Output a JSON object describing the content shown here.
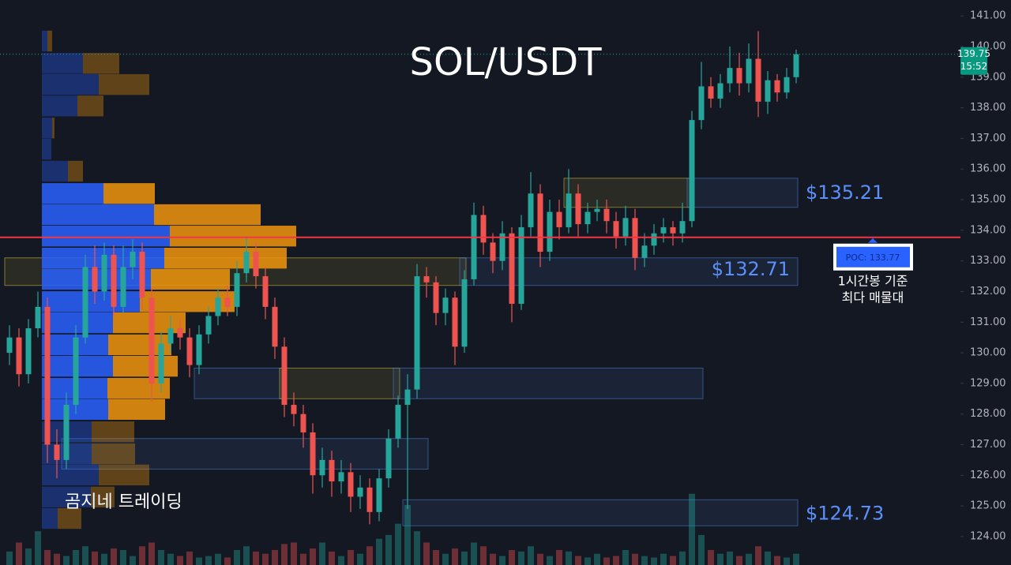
{
  "chart_data": {
    "type": "candlestick",
    "title": "SOL/USDT",
    "annotation": "곰지네 트레이딩",
    "ylim": [
      123.07,
      141.52
    ],
    "yticks": [
      {
        "value": 124,
        "label": "124.00"
      },
      {
        "value": 125,
        "label": "125.00"
      },
      {
        "value": 126,
        "label": "126.00"
      },
      {
        "value": 127,
        "label": "127.00"
      },
      {
        "value": 128,
        "label": "128.00"
      },
      {
        "value": 129,
        "label": "129.00"
      },
      {
        "value": 130,
        "label": "130.00"
      },
      {
        "value": 131,
        "label": "131.00"
      },
      {
        "value": 132,
        "label": "132.00"
      },
      {
        "value": 133,
        "label": "133.00"
      },
      {
        "value": 134,
        "label": "134.00"
      },
      {
        "value": 135,
        "label": "135.00"
      },
      {
        "value": 136,
        "label": "136.00"
      },
      {
        "value": 137,
        "label": "137.00"
      },
      {
        "value": 138,
        "label": "138.00"
      },
      {
        "value": 139,
        "label": "139.00"
      },
      {
        "value": 140,
        "label": "140.00"
      },
      {
        "value": 141,
        "label": "141.00"
      }
    ],
    "up_color": "#26a69a",
    "down_color": "#ef5350",
    "open": [
      130.0,
      130.5,
      129.3,
      130.8,
      131.5,
      127.0,
      126.5,
      128.3,
      130.5,
      132.8,
      132.0,
      133.2,
      131.5,
      132.8,
      133.3,
      131.8,
      129.0,
      130.3,
      130.8,
      130.5,
      129.6,
      130.6,
      131.2,
      131.8,
      131.5,
      132.6,
      133.3,
      132.5,
      131.5,
      130.2,
      128.3,
      128.0,
      127.4,
      126.0,
      126.5,
      125.8,
      126.1,
      125.3,
      125.6,
      124.8,
      125.9,
      127.2,
      128.3,
      128.8,
      132.5,
      132.3,
      131.3,
      131.8,
      130.2,
      132.4,
      134.5,
      133.6,
      133.0,
      133.9,
      131.6,
      134.1,
      135.2,
      133.3,
      134.6,
      134.1,
      135.2,
      134.2,
      134.6,
      134.7,
      134.3,
      133.8,
      134.4,
      133.1,
      133.5,
      133.9,
      134.1,
      133.9,
      134.3,
      137.6,
      138.7,
      138.3,
      138.8,
      139.3,
      138.8,
      139.6,
      138.2,
      138.9,
      138.5,
      139.0
    ],
    "high": [
      130.9,
      130.8,
      131.1,
      132.0,
      131.8,
      127.5,
      128.7,
      130.9,
      133.2,
      133.5,
      133.6,
      133.5,
      133.5,
      133.7,
      133.6,
      132.1,
      130.7,
      131.2,
      131.1,
      130.8,
      130.9,
      131.5,
      132.1,
      132.2,
      133.0,
      133.8,
      133.6,
      132.8,
      131.8,
      130.5,
      128.7,
      128.3,
      127.7,
      126.9,
      126.8,
      126.5,
      126.4,
      126.0,
      125.9,
      126.2,
      127.5,
      128.6,
      129.3,
      132.9,
      132.8,
      132.5,
      132.1,
      132.0,
      132.7,
      134.9,
      134.8,
      133.9,
      134.3,
      134.1,
      134.5,
      135.9,
      135.5,
      135.0,
      135.0,
      136.0,
      135.5,
      134.9,
      135.0,
      135.0,
      134.6,
      134.8,
      134.7,
      133.9,
      134.2,
      134.4,
      134.3,
      134.9,
      137.9,
      139.5,
      139.0,
      139.1,
      140.0,
      139.8,
      140.1,
      140.5,
      139.2,
      139.1,
      139.3,
      139.9
    ],
    "low": [
      129.6,
      128.9,
      129.0,
      130.5,
      126.4,
      125.9,
      126.2,
      128.0,
      130.3,
      131.6,
      131.7,
      131.2,
      131.3,
      132.4,
      131.4,
      128.4,
      128.7,
      130.0,
      130.1,
      129.2,
      129.3,
      130.3,
      130.9,
      131.2,
      131.2,
      132.3,
      132.1,
      131.1,
      129.8,
      127.9,
      127.6,
      126.9,
      125.4,
      125.6,
      125.3,
      125.4,
      124.8,
      124.9,
      124.4,
      124.5,
      125.6,
      126.9,
      124.9,
      128.5,
      131.8,
      130.9,
      130.9,
      129.6,
      130.0,
      132.2,
      133.2,
      132.6,
      132.7,
      131.0,
      131.4,
      133.8,
      132.8,
      133.0,
      133.7,
      133.9,
      133.8,
      133.9,
      134.3,
      133.9,
      133.4,
      133.5,
      132.7,
      132.8,
      133.2,
      133.6,
      133.5,
      133.6,
      134.1,
      137.3,
      138.0,
      138.0,
      138.5,
      138.4,
      138.5,
      137.7,
      137.8,
      138.2,
      138.3,
      138.8
    ],
    "close": [
      130.5,
      129.3,
      130.8,
      131.5,
      127.0,
      126.5,
      128.3,
      130.5,
      132.8,
      132.0,
      133.2,
      131.5,
      132.8,
      133.3,
      131.8,
      129.0,
      130.3,
      130.8,
      130.5,
      129.6,
      130.6,
      131.2,
      131.8,
      131.5,
      132.6,
      133.3,
      132.5,
      131.5,
      130.2,
      128.3,
      128.0,
      127.4,
      126.0,
      126.5,
      125.8,
      126.1,
      125.3,
      125.6,
      124.8,
      125.9,
      127.2,
      128.3,
      128.8,
      132.5,
      132.3,
      131.3,
      131.8,
      130.2,
      132.4,
      134.5,
      133.6,
      133.0,
      133.9,
      131.6,
      134.1,
      135.2,
      133.3,
      134.6,
      134.1,
      135.2,
      134.2,
      134.6,
      134.7,
      134.3,
      133.8,
      134.4,
      133.1,
      133.5,
      133.9,
      134.1,
      133.9,
      134.3,
      137.6,
      138.7,
      138.3,
      138.8,
      139.3,
      138.8,
      139.6,
      138.2,
      138.9,
      138.5,
      139.0,
      139.75
    ],
    "volume": [
      18,
      30,
      22,
      45,
      20,
      15,
      12,
      20,
      25,
      18,
      15,
      22,
      20,
      12,
      25,
      30,
      20,
      15,
      12,
      18,
      10,
      12,
      15,
      10,
      20,
      25,
      18,
      15,
      20,
      28,
      30,
      15,
      22,
      30,
      18,
      12,
      20,
      15,
      25,
      35,
      40,
      55,
      80,
      45,
      30,
      20,
      15,
      22,
      18,
      30,
      25,
      15,
      12,
      20,
      18,
      25,
      15,
      12,
      20,
      18,
      12,
      10,
      15,
      10,
      12,
      20,
      15,
      12,
      10,
      15,
      12,
      18,
      95,
      40,
      20,
      15,
      18,
      12,
      15,
      25,
      18,
      12,
      10,
      15
    ],
    "profile": {
      "prices": [
        140.18,
        139.45,
        138.76,
        138.06,
        137.34,
        136.65,
        135.93,
        135.2,
        134.51,
        133.81,
        133.09,
        132.4,
        131.67,
        130.98,
        130.26,
        129.56,
        128.84,
        128.15,
        127.42,
        126.7,
        126.01,
        125.29,
        124.59
      ],
      "buy": [
        7,
        52,
        72,
        45,
        13,
        12,
        33,
        78,
        142,
        162,
        155,
        138,
        124,
        90,
        84,
        90,
        83,
        84,
        63,
        63,
        72,
        62,
        20
      ],
      "sell": [
        6,
        46,
        64,
        33,
        3,
        0,
        19,
        65,
        135,
        160,
        155,
        100,
        120,
        92,
        80,
        82,
        79,
        72,
        54,
        55,
        64,
        30,
        30
      ],
      "buy_color": "#2962ff",
      "sell_color": "#f0950c",
      "value_area": [
        127.9,
        135.5
      ]
    },
    "zones": [
      {
        "top": 135.7,
        "bottom": 134.75,
        "start": 59,
        "end": 72,
        "color": "#c8b432"
      },
      {
        "top": 135.7,
        "bottom": 134.75,
        "start": 72,
        "end": 83,
        "color": "#4a78c8"
      },
      {
        "top": 133.1,
        "bottom": 132.2,
        "start": 0,
        "end": 48,
        "color": "#c8b432"
      },
      {
        "top": 133.1,
        "bottom": 132.2,
        "start": 48,
        "end": 83,
        "color": "#4a78c8"
      },
      {
        "top": 129.5,
        "bottom": 128.5,
        "start": 20,
        "end": 29,
        "color": "#4a78c8"
      },
      {
        "top": 129.5,
        "bottom": 128.5,
        "start": 29,
        "end": 41,
        "color": "#c8b432"
      },
      {
        "top": 129.5,
        "bottom": 128.5,
        "start": 41,
        "end": 73,
        "color": "#4a78c8"
      },
      {
        "top": 127.2,
        "bottom": 126.2,
        "start": 6,
        "end": 44,
        "color": "#4a78c8"
      },
      {
        "top": 125.2,
        "bottom": 124.35,
        "start": 42,
        "end": 83,
        "color": "#4a78c8"
      }
    ],
    "levels": [
      {
        "value": 135.21,
        "label": "$135.21"
      },
      {
        "value": 132.71,
        "label": "$132.71"
      },
      {
        "value": 124.73,
        "label": "$124.73"
      }
    ],
    "poc": {
      "value": 133.77,
      "label": "POC: 133.77"
    },
    "poc_note": [
      "1시간봉 기준",
      "최다 매물대"
    ],
    "last_price": {
      "value": 139.75,
      "label": "139.75"
    },
    "countdown": "15:52"
  }
}
